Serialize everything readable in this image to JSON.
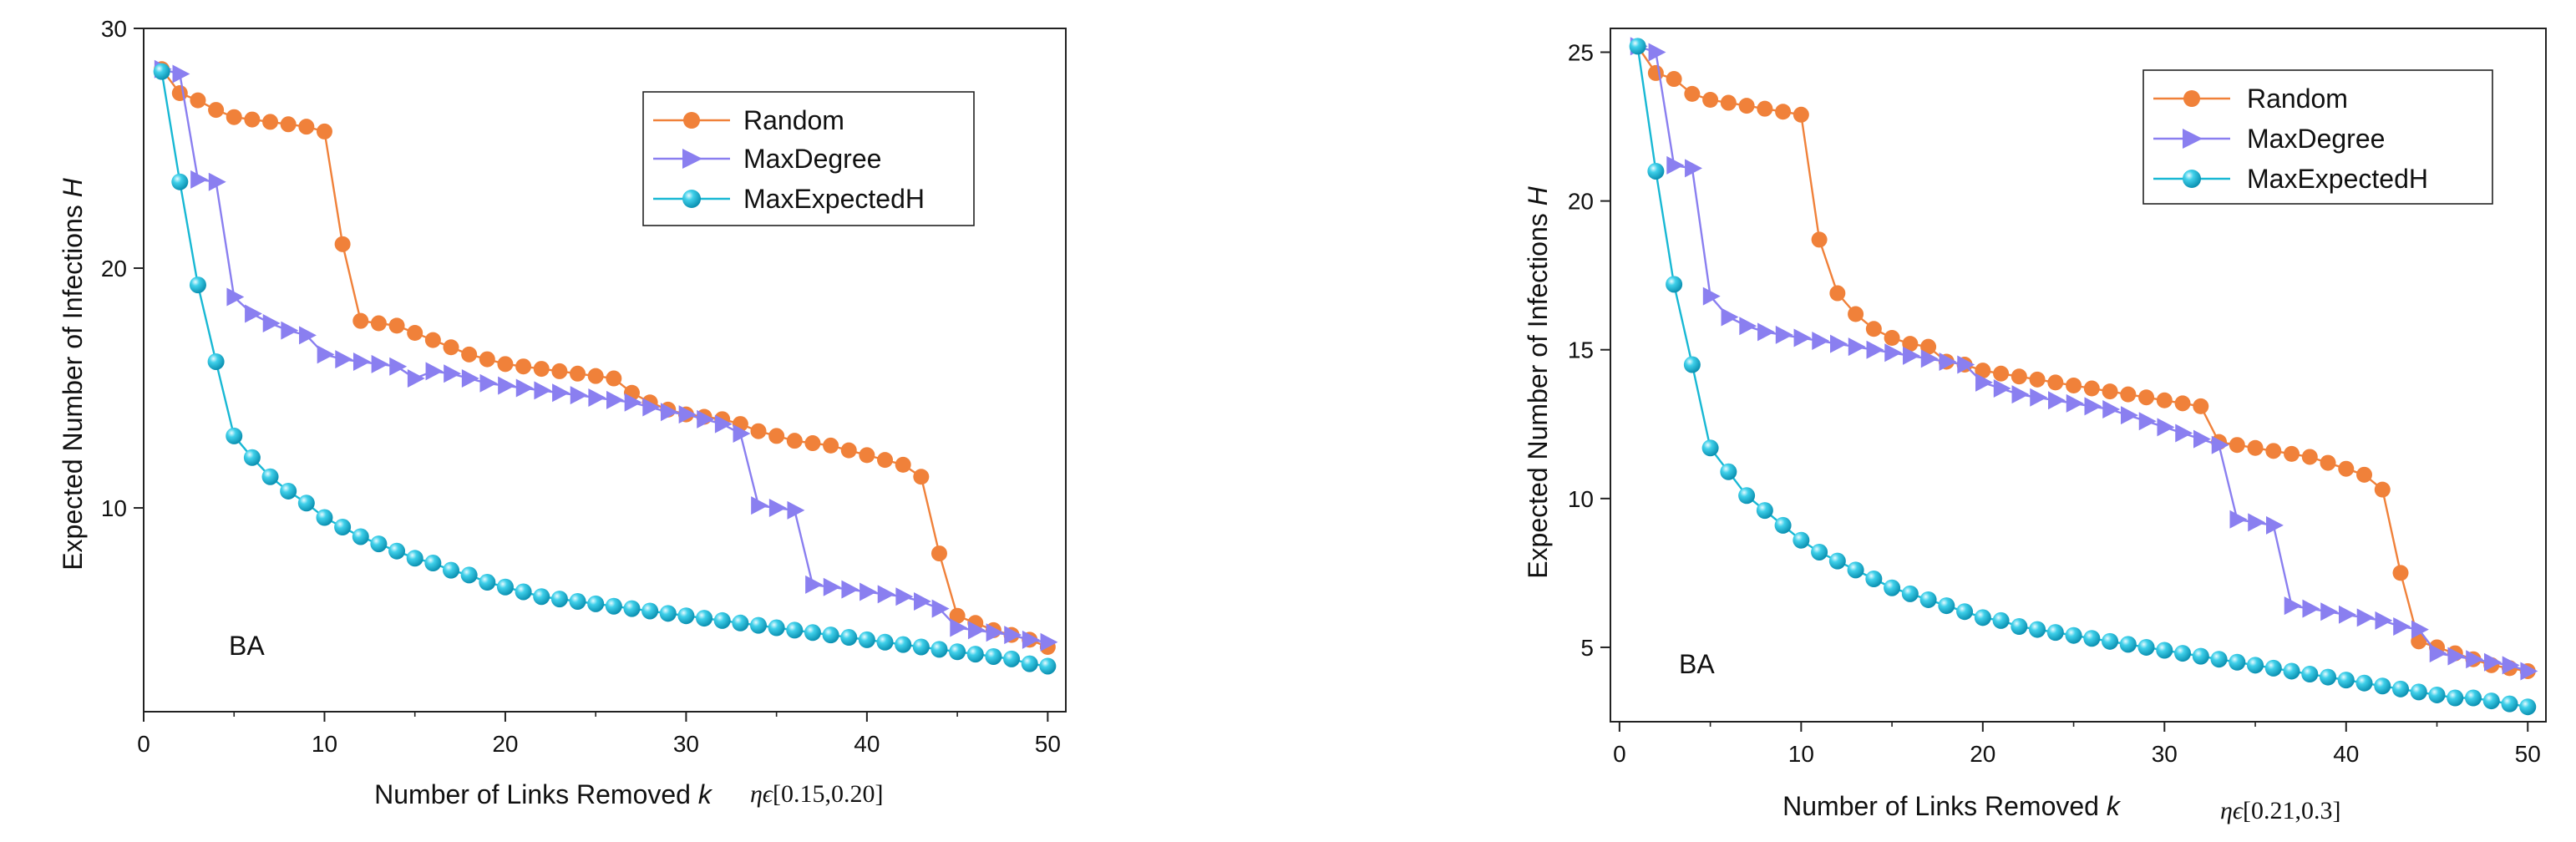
{
  "colors": {
    "random": "#F0813A",
    "maxdegree": "#8A7FF0",
    "maxexpectedh": "#18B8D4"
  },
  "chart_data": [
    {
      "type": "line",
      "panel_label": "BA",
      "eta_symbol": "ηϵ",
      "eta_range": "[0.15,0.20]",
      "xlabel": "Number of Links Removed",
      "xlabel_var": "k",
      "ylabel": "Expected Number of Infections",
      "ylabel_var": "H",
      "xlim": [
        0,
        51
      ],
      "ylim": [
        1.5,
        30
      ],
      "xticks": [
        0,
        10,
        20,
        30,
        40,
        50
      ],
      "yticks": [
        10,
        20,
        30
      ],
      "legend_position": "top-right",
      "series": [
        {
          "name": "Random",
          "marker": "circle",
          "color": "#F0813A",
          "x": [
            1,
            2,
            3,
            4,
            5,
            6,
            7,
            8,
            9,
            10,
            11,
            12,
            13,
            14,
            15,
            16,
            17,
            18,
            19,
            20,
            21,
            22,
            23,
            24,
            25,
            26,
            27,
            28,
            29,
            30,
            31,
            32,
            33,
            34,
            35,
            36,
            37,
            38,
            39,
            40,
            41,
            42,
            43,
            44,
            45,
            46,
            47,
            48,
            49,
            50
          ],
          "values": [
            28.3,
            27.3,
            27.0,
            26.6,
            26.3,
            26.2,
            26.1,
            26.0,
            25.9,
            25.7,
            21.0,
            17.8,
            17.7,
            17.6,
            17.3,
            17.0,
            16.7,
            16.4,
            16.2,
            16.0,
            15.9,
            15.8,
            15.7,
            15.6,
            15.5,
            15.4,
            14.8,
            14.4,
            14.1,
            13.9,
            13.8,
            13.7,
            13.5,
            13.2,
            13.0,
            12.8,
            12.7,
            12.6,
            12.4,
            12.2,
            12.0,
            11.8,
            11.3,
            8.1,
            5.5,
            5.2,
            4.9,
            4.7,
            4.5,
            4.2
          ]
        },
        {
          "name": "MaxDegree",
          "marker": "triangle-right",
          "color": "#8A7FF0",
          "x": [
            1,
            2,
            3,
            4,
            5,
            6,
            7,
            8,
            9,
            10,
            11,
            12,
            13,
            14,
            15,
            16,
            17,
            18,
            19,
            20,
            21,
            22,
            23,
            24,
            25,
            26,
            27,
            28,
            29,
            30,
            31,
            32,
            33,
            34,
            35,
            36,
            37,
            38,
            39,
            40,
            41,
            42,
            43,
            44,
            45,
            46,
            47,
            48,
            49,
            50
          ],
          "values": [
            28.3,
            28.1,
            23.7,
            23.6,
            18.8,
            18.1,
            17.7,
            17.4,
            17.2,
            16.4,
            16.2,
            16.1,
            16.0,
            15.9,
            15.4,
            15.7,
            15.6,
            15.4,
            15.2,
            15.1,
            15.0,
            14.9,
            14.8,
            14.7,
            14.6,
            14.5,
            14.4,
            14.2,
            14.0,
            13.9,
            13.7,
            13.5,
            13.1,
            10.1,
            10.0,
            9.9,
            6.8,
            6.7,
            6.6,
            6.5,
            6.4,
            6.3,
            6.1,
            5.8,
            5.0,
            4.9,
            4.8,
            4.7,
            4.5,
            4.4
          ]
        },
        {
          "name": "MaxExpectedH",
          "marker": "sphere",
          "color": "#18B8D4",
          "x": [
            1,
            2,
            3,
            4,
            5,
            6,
            7,
            8,
            9,
            10,
            11,
            12,
            13,
            14,
            15,
            16,
            17,
            18,
            19,
            20,
            21,
            22,
            23,
            24,
            25,
            26,
            27,
            28,
            29,
            30,
            31,
            32,
            33,
            34,
            35,
            36,
            37,
            38,
            39,
            40,
            41,
            42,
            43,
            44,
            45,
            46,
            47,
            48,
            49,
            50
          ],
          "values": [
            28.2,
            23.6,
            19.3,
            16.1,
            13.0,
            12.1,
            11.3,
            10.7,
            10.2,
            9.6,
            9.2,
            8.8,
            8.5,
            8.2,
            7.9,
            7.7,
            7.4,
            7.2,
            6.9,
            6.7,
            6.5,
            6.3,
            6.2,
            6.1,
            6.0,
            5.9,
            5.8,
            5.7,
            5.6,
            5.5,
            5.4,
            5.3,
            5.2,
            5.1,
            5.0,
            4.9,
            4.8,
            4.7,
            4.6,
            4.5,
            4.4,
            4.3,
            4.2,
            4.1,
            4.0,
            3.9,
            3.8,
            3.7,
            3.5,
            3.4
          ]
        }
      ]
    },
    {
      "type": "line",
      "panel_label": "BA",
      "eta_symbol": "ηϵ",
      "eta_range": "[0.21,0.3]",
      "xlabel": "Number of Links Removed",
      "xlabel_var": "k",
      "ylabel": "Expected Number of Infections",
      "ylabel_var": "H",
      "xlim": [
        -0.5,
        51
      ],
      "ylim": [
        2.5,
        25.8
      ],
      "xticks": [
        0,
        10,
        20,
        30,
        40,
        50
      ],
      "yticks": [
        5,
        10,
        15,
        20,
        25
      ],
      "legend_position": "top-right",
      "series": [
        {
          "name": "Random",
          "marker": "circle",
          "color": "#F0813A",
          "x": [
            1,
            2,
            3,
            4,
            5,
            6,
            7,
            8,
            9,
            10,
            11,
            12,
            13,
            14,
            15,
            16,
            17,
            18,
            19,
            20,
            21,
            22,
            23,
            24,
            25,
            26,
            27,
            28,
            29,
            30,
            31,
            32,
            33,
            34,
            35,
            36,
            37,
            38,
            39,
            40,
            41,
            42,
            43,
            44,
            45,
            46,
            47,
            48,
            49,
            50
          ],
          "values": [
            25.2,
            24.3,
            24.1,
            23.6,
            23.4,
            23.3,
            23.2,
            23.1,
            23.0,
            22.9,
            18.7,
            16.9,
            16.2,
            15.7,
            15.4,
            15.2,
            15.1,
            14.6,
            14.5,
            14.3,
            14.2,
            14.1,
            14.0,
            13.9,
            13.8,
            13.7,
            13.6,
            13.5,
            13.4,
            13.3,
            13.2,
            13.1,
            11.9,
            11.8,
            11.7,
            11.6,
            11.5,
            11.4,
            11.2,
            11.0,
            10.8,
            10.3,
            7.5,
            5.2,
            5.0,
            4.8,
            4.6,
            4.4,
            4.3,
            4.2
          ]
        },
        {
          "name": "MaxDegree",
          "marker": "triangle-right",
          "color": "#8A7FF0",
          "x": [
            1,
            2,
            3,
            4,
            5,
            6,
            7,
            8,
            9,
            10,
            11,
            12,
            13,
            14,
            15,
            16,
            17,
            18,
            19,
            20,
            21,
            22,
            23,
            24,
            25,
            26,
            27,
            28,
            29,
            30,
            31,
            32,
            33,
            34,
            35,
            36,
            37,
            38,
            39,
            40,
            41,
            42,
            43,
            44,
            45,
            46,
            47,
            48,
            49,
            50
          ],
          "values": [
            25.2,
            25.0,
            21.2,
            21.1,
            16.8,
            16.1,
            15.8,
            15.6,
            15.5,
            15.4,
            15.3,
            15.2,
            15.1,
            15.0,
            14.9,
            14.8,
            14.7,
            14.6,
            14.5,
            13.9,
            13.7,
            13.5,
            13.4,
            13.3,
            13.2,
            13.1,
            13.0,
            12.8,
            12.6,
            12.4,
            12.2,
            12.0,
            11.8,
            9.3,
            9.2,
            9.1,
            6.4,
            6.3,
            6.2,
            6.1,
            6.0,
            5.9,
            5.7,
            5.6,
            4.8,
            4.7,
            4.6,
            4.5,
            4.4,
            4.2
          ]
        },
        {
          "name": "MaxExpectedH",
          "marker": "sphere",
          "color": "#18B8D4",
          "x": [
            1,
            2,
            3,
            4,
            5,
            6,
            7,
            8,
            9,
            10,
            11,
            12,
            13,
            14,
            15,
            16,
            17,
            18,
            19,
            20,
            21,
            22,
            23,
            24,
            25,
            26,
            27,
            28,
            29,
            30,
            31,
            32,
            33,
            34,
            35,
            36,
            37,
            38,
            39,
            40,
            41,
            42,
            43,
            44,
            45,
            46,
            47,
            48,
            49,
            50
          ],
          "values": [
            25.2,
            21.0,
            17.2,
            14.5,
            11.7,
            10.9,
            10.1,
            9.6,
            9.1,
            8.6,
            8.2,
            7.9,
            7.6,
            7.3,
            7.0,
            6.8,
            6.6,
            6.4,
            6.2,
            6.0,
            5.9,
            5.7,
            5.6,
            5.5,
            5.4,
            5.3,
            5.2,
            5.1,
            5.0,
            4.9,
            4.8,
            4.7,
            4.6,
            4.5,
            4.4,
            4.3,
            4.2,
            4.1,
            4.0,
            3.9,
            3.8,
            3.7,
            3.6,
            3.5,
            3.4,
            3.3,
            3.3,
            3.2,
            3.1,
            3.0
          ]
        }
      ]
    }
  ]
}
